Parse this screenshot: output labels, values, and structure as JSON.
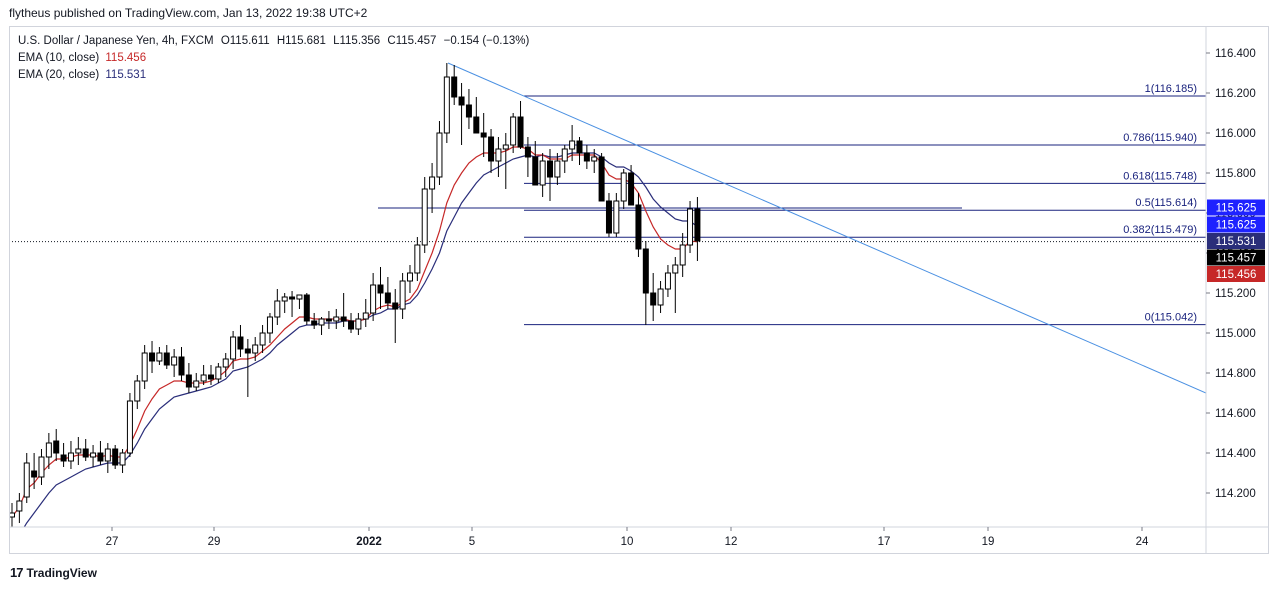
{
  "header": {
    "published_line": "flytheus published on TradingView.com, Jan 13, 2022 19:38 UTC+2"
  },
  "legend": {
    "symbol": "U.S. Dollar / Japanese Yen, 4h, FXCM",
    "open_label": "O",
    "open": "115.611",
    "high_label": "H",
    "high": "115.681",
    "low_label": "L",
    "low": "115.356",
    "close_label": "C",
    "close": "115.457",
    "change": "−0.154 (−0.13%)",
    "ema10_label": "EMA (10, close)",
    "ema10_value": "115.456",
    "ema20_label": "EMA (20, close)",
    "ema20_value": "115.531"
  },
  "footer": {
    "brand": "TradingView"
  },
  "colors": {
    "candle_up": "#ffffff",
    "candle_down": "#000000",
    "candle_border": "#000000",
    "ema10": "#c62828",
    "ema20": "#2a2e7a",
    "trendline": "#4a90e2",
    "fib": "#1a237e",
    "last_price_bg": "#000000",
    "ema10_bg": "#c62828",
    "ema20_bg": "#2a2e7a",
    "fib_label_bg": "#1e22ff"
  },
  "chart_data": {
    "type": "candlestick",
    "symbol": "USDJPY",
    "timeframe": "4h",
    "ylim": [
      114.0,
      116.55
    ],
    "y_ticks": [
      "116.400",
      "116.200",
      "116.000",
      "115.800",
      "115.600",
      "115.400",
      "115.200",
      "115.000",
      "114.800",
      "114.600",
      "114.400",
      "114.200"
    ],
    "x_ticks": [
      "27",
      "29",
      "2022",
      "5",
      "10",
      "12",
      "17",
      "19",
      "24"
    ],
    "candles": [
      [
        114.08,
        114.15,
        114.03,
        114.1
      ],
      [
        114.11,
        114.2,
        114.05,
        114.16
      ],
      [
        114.18,
        114.4,
        114.15,
        114.35
      ],
      [
        114.31,
        114.4,
        114.22,
        114.28
      ],
      [
        114.28,
        114.42,
        114.24,
        114.38
      ],
      [
        114.38,
        114.5,
        114.32,
        114.45
      ],
      [
        114.46,
        114.52,
        114.36,
        114.4
      ],
      [
        114.39,
        114.45,
        114.33,
        114.36
      ],
      [
        114.36,
        114.46,
        114.32,
        114.4
      ],
      [
        114.4,
        114.48,
        114.34,
        114.42
      ],
      [
        114.42,
        114.47,
        114.36,
        114.38
      ],
      [
        114.38,
        114.44,
        114.33,
        114.4
      ],
      [
        114.4,
        114.46,
        114.34,
        114.36
      ],
      [
        114.36,
        114.45,
        114.3,
        114.42
      ],
      [
        114.42,
        114.44,
        114.32,
        114.34
      ],
      [
        114.34,
        114.42,
        114.3,
        114.4
      ],
      [
        114.4,
        114.7,
        114.38,
        114.66
      ],
      [
        114.66,
        114.79,
        114.62,
        114.76
      ],
      [
        114.76,
        114.94,
        114.72,
        114.9
      ],
      [
        114.9,
        114.96,
        114.8,
        114.86
      ],
      [
        114.86,
        114.93,
        114.84,
        114.9
      ],
      [
        114.9,
        114.94,
        114.82,
        114.84
      ],
      [
        114.84,
        114.92,
        114.78,
        114.88
      ],
      [
        114.88,
        114.93,
        114.76,
        114.79
      ],
      [
        114.79,
        114.85,
        114.7,
        114.73
      ],
      [
        114.73,
        114.8,
        114.71,
        114.76
      ],
      [
        114.76,
        114.84,
        114.74,
        114.79
      ],
      [
        114.79,
        114.84,
        114.74,
        114.77
      ],
      [
        114.77,
        114.85,
        114.75,
        114.83
      ],
      [
        114.83,
        114.9,
        114.78,
        114.87
      ],
      [
        114.87,
        115.01,
        114.82,
        114.98
      ],
      [
        114.98,
        115.04,
        114.88,
        114.92
      ],
      [
        114.92,
        114.97,
        114.68,
        114.9
      ],
      [
        114.9,
        114.98,
        114.86,
        114.94
      ],
      [
        114.94,
        115.04,
        114.9,
        115.0
      ],
      [
        115.0,
        115.1,
        114.95,
        115.08
      ],
      [
        115.08,
        115.22,
        115.04,
        115.16
      ],
      [
        115.16,
        115.2,
        115.1,
        115.18
      ],
      [
        115.18,
        115.21,
        115.08,
        115.17
      ],
      [
        115.17,
        115.19,
        115.12,
        115.19
      ],
      [
        115.19,
        115.2,
        115.04,
        115.06
      ],
      [
        115.06,
        115.1,
        115.02,
        115.04
      ],
      [
        115.04,
        115.08,
        114.99,
        115.07
      ],
      [
        115.07,
        115.11,
        115.02,
        115.06
      ],
      [
        115.06,
        115.12,
        115.02,
        115.08
      ],
      [
        115.08,
        115.2,
        115.03,
        115.06
      ],
      [
        115.06,
        115.1,
        115.0,
        115.02
      ],
      [
        115.02,
        115.1,
        114.99,
        115.07
      ],
      [
        115.07,
        115.17,
        115.03,
        115.1
      ],
      [
        115.1,
        115.3,
        115.06,
        115.24
      ],
      [
        115.24,
        115.33,
        115.12,
        115.2
      ],
      [
        115.2,
        115.28,
        115.12,
        115.15
      ],
      [
        115.15,
        115.22,
        114.95,
        115.12
      ],
      [
        115.12,
        115.3,
        115.07,
        115.26
      ],
      [
        115.26,
        115.34,
        115.2,
        115.3
      ],
      [
        115.3,
        115.48,
        115.26,
        115.44
      ],
      [
        115.44,
        115.78,
        115.4,
        115.72
      ],
      [
        115.72,
        115.85,
        115.6,
        115.78
      ],
      [
        115.78,
        116.06,
        115.74,
        116.0
      ],
      [
        116.0,
        116.35,
        115.95,
        116.28
      ],
      [
        116.28,
        116.34,
        116.14,
        116.18
      ],
      [
        116.18,
        116.25,
        115.94,
        116.14
      ],
      [
        116.14,
        116.22,
        116.02,
        116.08
      ],
      [
        116.08,
        116.18,
        116.0,
        116.0
      ],
      [
        116.0,
        116.1,
        115.88,
        115.98
      ],
      [
        115.98,
        116.02,
        115.8,
        115.86
      ],
      [
        115.86,
        115.98,
        115.78,
        115.92
      ],
      [
        115.92,
        116.0,
        115.72,
        115.94
      ],
      [
        115.94,
        116.1,
        115.9,
        116.08
      ],
      [
        116.08,
        116.16,
        115.92,
        115.93
      ],
      [
        115.93,
        115.98,
        115.78,
        115.88
      ],
      [
        115.88,
        115.96,
        115.76,
        115.74
      ],
      [
        115.74,
        115.9,
        115.68,
        115.86
      ],
      [
        115.86,
        115.92,
        115.66,
        115.78
      ],
      [
        115.78,
        115.9,
        115.74,
        115.86
      ],
      [
        115.86,
        115.94,
        115.8,
        115.92
      ],
      [
        115.92,
        116.04,
        115.86,
        115.96
      ],
      [
        115.96,
        115.98,
        115.84,
        115.9
      ],
      [
        115.9,
        115.94,
        115.82,
        115.86
      ],
      [
        115.86,
        115.92,
        115.8,
        115.88
      ],
      [
        115.88,
        115.9,
        115.66,
        115.66
      ],
      [
        115.66,
        115.7,
        115.48,
        115.5
      ],
      [
        115.5,
        115.7,
        115.48,
        115.66
      ],
      [
        115.66,
        115.82,
        115.62,
        115.8
      ],
      [
        115.8,
        115.84,
        115.64,
        115.64
      ],
      [
        115.64,
        115.7,
        115.38,
        115.42
      ],
      [
        115.42,
        115.46,
        115.04,
        115.2
      ],
      [
        115.2,
        115.3,
        115.06,
        115.14
      ],
      [
        115.14,
        115.26,
        115.1,
        115.22
      ],
      [
        115.22,
        115.34,
        115.18,
        115.3
      ],
      [
        115.3,
        115.38,
        115.1,
        115.34
      ],
      [
        115.34,
        115.5,
        115.28,
        115.44
      ],
      [
        115.44,
        115.66,
        115.4,
        115.62
      ],
      [
        115.62,
        115.68,
        115.36,
        115.46
      ]
    ],
    "ema10": [
      114.08,
      114.13,
      114.22,
      114.25,
      114.3,
      114.34,
      114.37,
      114.37,
      114.38,
      114.39,
      114.39,
      114.39,
      114.38,
      114.39,
      114.38,
      114.38,
      114.44,
      114.52,
      114.61,
      114.67,
      114.72,
      114.74,
      114.76,
      114.76,
      114.75,
      114.75,
      114.75,
      114.76,
      114.78,
      114.81,
      114.86,
      114.87,
      114.87,
      114.88,
      114.91,
      114.94,
      114.98,
      115.02,
      115.05,
      115.08,
      115.08,
      115.07,
      115.07,
      115.07,
      115.07,
      115.07,
      115.06,
      115.06,
      115.07,
      115.11,
      115.13,
      115.14,
      115.13,
      115.15,
      115.17,
      115.22,
      115.31,
      115.4,
      115.51,
      115.65,
      115.74,
      115.8,
      115.85,
      115.88,
      115.9,
      115.9,
      115.9,
      115.91,
      115.93,
      115.93,
      115.92,
      115.89,
      115.89,
      115.87,
      115.87,
      115.87,
      115.89,
      115.89,
      115.89,
      115.89,
      115.85,
      115.79,
      115.77,
      115.77,
      115.75,
      115.7,
      115.61,
      115.53,
      115.47,
      115.44,
      115.42,
      115.42,
      115.46,
      115.456
    ],
    "ema20": [
      113.95,
      113.99,
      114.05,
      114.1,
      114.15,
      114.2,
      114.24,
      114.26,
      114.28,
      114.3,
      114.32,
      114.33,
      114.34,
      114.35,
      114.35,
      114.35,
      114.39,
      114.45,
      114.52,
      114.57,
      114.62,
      114.65,
      114.68,
      114.69,
      114.7,
      114.71,
      114.72,
      114.73,
      114.75,
      114.77,
      114.81,
      114.82,
      114.83,
      114.85,
      114.87,
      114.9,
      114.94,
      114.97,
      115.0,
      115.03,
      115.04,
      115.04,
      115.05,
      115.05,
      115.05,
      115.06,
      115.06,
      115.06,
      115.07,
      115.09,
      115.1,
      115.12,
      115.12,
      115.14,
      115.15,
      115.19,
      115.25,
      115.32,
      115.4,
      115.51,
      115.58,
      115.65,
      115.7,
      115.75,
      115.79,
      115.81,
      115.83,
      115.85,
      115.87,
      115.88,
      115.89,
      115.88,
      115.89,
      115.88,
      115.88,
      115.89,
      115.9,
      115.9,
      115.9,
      115.9,
      115.88,
      115.85,
      115.83,
      115.83,
      115.81,
      115.78,
      115.73,
      115.67,
      115.63,
      115.6,
      115.57,
      115.56,
      115.56,
      115.531
    ],
    "last_price": 115.457,
    "fib_levels": [
      {
        "label": "1(116.185)",
        "value": 116.185
      },
      {
        "label": "0.786(115.940)",
        "value": 115.94
      },
      {
        "label": "0.618(115.748)",
        "value": 115.748
      },
      {
        "label": "0.5(115.614)",
        "value": 115.614
      },
      {
        "label": "0.382(115.479)",
        "value": 115.479
      },
      {
        "label": "0(115.042)",
        "value": 115.042
      }
    ],
    "horizontal_line": 115.625,
    "trendline": {
      "from_price": 116.35,
      "to_price": 114.7
    },
    "price_labels": [
      {
        "text": "115.625",
        "value": 115.625,
        "kind": "fib"
      },
      {
        "text": "115.625",
        "value": 115.625,
        "kind": "fib"
      },
      {
        "text": "115.531",
        "value": 115.531,
        "kind": "ema20"
      },
      {
        "text": "115.457",
        "value": 115.457,
        "kind": "last"
      },
      {
        "text": "115.456",
        "value": 115.456,
        "kind": "ema10"
      }
    ]
  }
}
